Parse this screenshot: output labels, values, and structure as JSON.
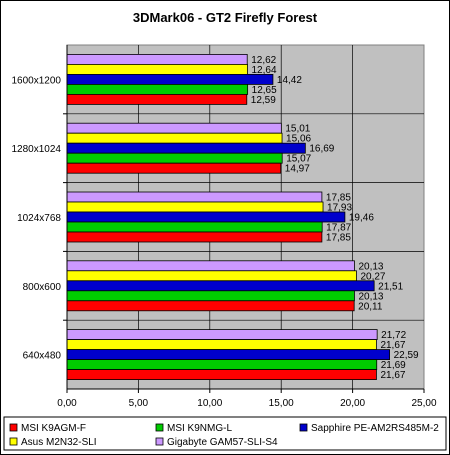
{
  "chart_data": {
    "type": "bar",
    "orientation": "horizontal",
    "title": "3DMark06 - GT2 Firefly Forest",
    "categories": [
      "1600x1200",
      "1280x1024",
      "1024x768",
      "800x600",
      "640x480"
    ],
    "series": [
      {
        "name": "MSI K9AGM-F",
        "color": "#FF0000",
        "values": [
          12.59,
          14.97,
          17.85,
          20.11,
          21.67
        ]
      },
      {
        "name": "MSI K9NMG-L",
        "color": "#00CC00",
        "values": [
          12.65,
          15.07,
          17.87,
          20.13,
          21.69
        ]
      },
      {
        "name": "Sapphire PE-AM2RS485M-2",
        "color": "#0000CC",
        "values": [
          14.42,
          16.69,
          19.46,
          21.51,
          22.59
        ]
      },
      {
        "name": "Asus M2N32-SLI",
        "color": "#FFFF00",
        "values": [
          12.64,
          15.06,
          17.93,
          20.27,
          21.67
        ]
      },
      {
        "name": "Gigabyte GAM57-SLI-S4",
        "color": "#CC99FF",
        "values": [
          12.62,
          15.01,
          17.85,
          20.13,
          21.72
        ]
      }
    ],
    "bar_order_top_to_bottom": [
      "Gigabyte GAM57-SLI-S4",
      "Asus M2N32-SLI",
      "Sapphire PE-AM2RS485M-2",
      "MSI K9NMG-L",
      "MSI K9AGM-F"
    ],
    "xlim": [
      0,
      25
    ],
    "xticks": [
      0,
      5,
      10,
      15,
      20,
      25
    ],
    "xtick_labels": [
      "0,00",
      "5,00",
      "10,00",
      "15,00",
      "20,00",
      "25,00"
    ],
    "grid": true,
    "plot_background": "#C0C0C0",
    "legend_position": "bottom",
    "decimal_separator": ","
  }
}
